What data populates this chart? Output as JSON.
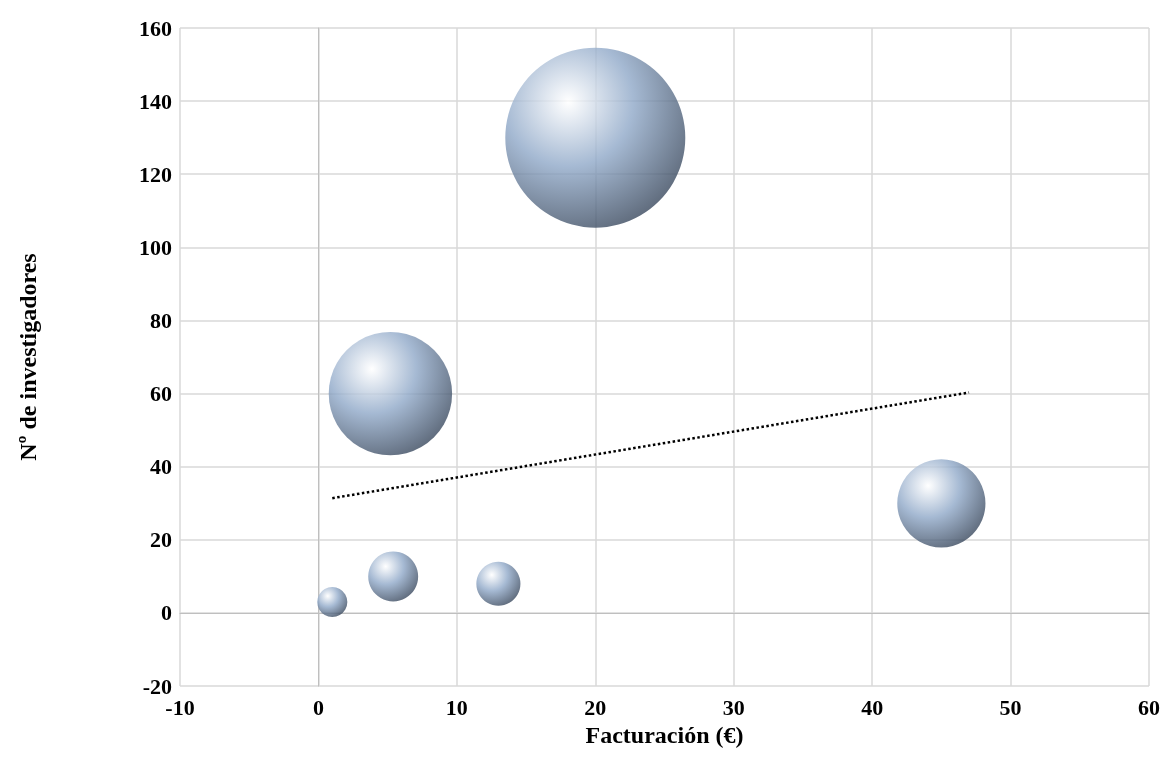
{
  "chart_data": {
    "type": "bubble",
    "xlabel": "Facturación (€)",
    "ylabel": "Nº de investigadores",
    "xlim": [
      -10,
      60
    ],
    "xticks": [
      -10,
      0,
      10,
      20,
      30,
      40,
      50,
      60
    ],
    "ylim": [
      -20,
      160
    ],
    "yticks": [
      -20,
      0,
      20,
      40,
      60,
      80,
      100,
      120,
      140,
      160
    ],
    "grid": true,
    "series": [
      {
        "type": "bubble",
        "color": "#8fa8c8",
        "x": [
          1,
          5.4,
          13,
          20,
          5.2,
          45
        ],
        "values": [
          3,
          10,
          8,
          130,
          60,
          30
        ],
        "sizes": [
          0.028,
          0.077,
          0.06,
          1,
          0.47,
          0.24
        ]
      },
      {
        "type": "line",
        "color": "#000000",
        "line_style": "dotted",
        "x": [
          1,
          47
        ],
        "values": [
          31.4,
          60.3
        ]
      }
    ]
  }
}
